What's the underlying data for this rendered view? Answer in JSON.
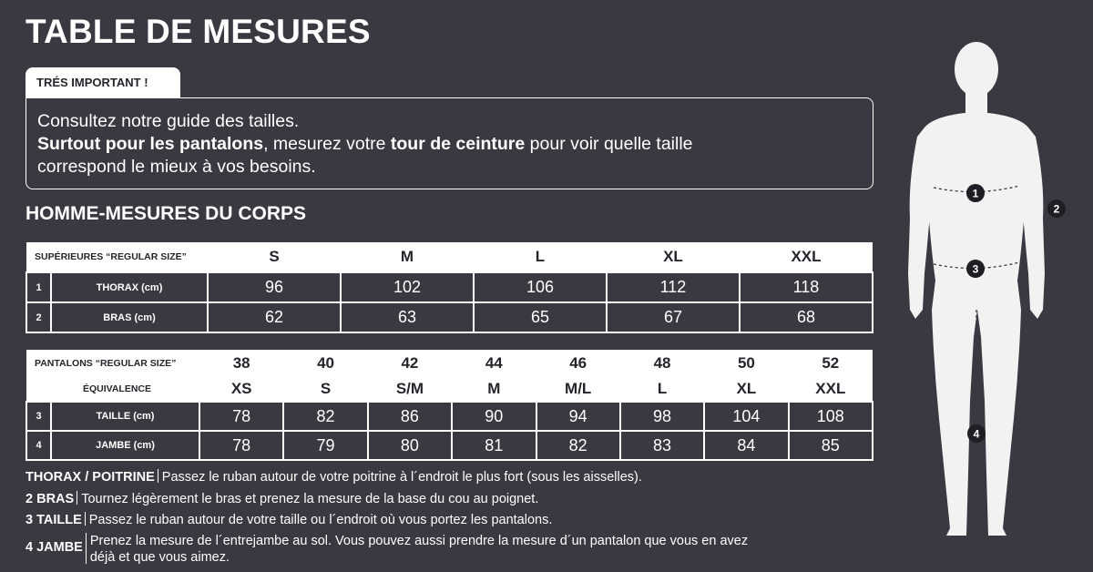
{
  "title": "TABLE DE MESURES",
  "important_label": "TRÉS IMPORTANT !",
  "notice": {
    "line1": "Consultez notre guide des tailles.",
    "line2_bold1": "Surtout pour les pantalons",
    "line2_mid": ", mesurez votre ",
    "line2_bold2": "tour de ceinture",
    "line2_end": " pour voir quelle taille",
    "line3": "correspond le mieux à vos besoins."
  },
  "subtitle": "HOMME-MESURES DU CORPS",
  "tops": {
    "header_label": "SUPÉRIEURES “REGULAR SIZE”",
    "sizes": [
      "S",
      "M",
      "L",
      "XL",
      "XXL"
    ],
    "rows": [
      {
        "num": "1",
        "label": "THORAX  (cm)",
        "values": [
          "96",
          "102",
          "106",
          "112",
          "118"
        ]
      },
      {
        "num": "2",
        "label": "BRAS  (cm)",
        "values": [
          "62",
          "63",
          "65",
          "67",
          "68"
        ]
      }
    ]
  },
  "pants": {
    "header_label": "PANTALONS “REGULAR SIZE”",
    "sizes": [
      "38",
      "40",
      "42",
      "44",
      "46",
      "48",
      "50",
      "52"
    ],
    "equiv_label": "ÉQUIVALENCE",
    "equiv": [
      "XS",
      "S",
      "S/M",
      "M",
      "M/L",
      "L",
      "XL",
      "XXL"
    ],
    "rows": [
      {
        "num": "3",
        "label": "TAILLE  (cm)",
        "values": [
          "78",
          "82",
          "86",
          "90",
          "94",
          "98",
          "104",
          "108"
        ]
      },
      {
        "num": "4",
        "label": "JAMBE (cm)",
        "values": [
          "78",
          "79",
          "80",
          "81",
          "82",
          "83",
          "84",
          "85"
        ]
      }
    ]
  },
  "legend": [
    {
      "key": "THORAX / POITRINE",
      "text": "Passez le ruban autour de votre poitrine à l´endroit le plus fort (sous les aisselles)."
    },
    {
      "key": "2 BRAS",
      "text": "Tournez légèrement le bras et prenez la mesure de la base du cou au poignet."
    },
    {
      "key": "3 TAILLE",
      "text": "Passez le ruban autour de votre taille ou l´endroit où vous portez les pantalons."
    },
    {
      "key": "4 JAMBE",
      "text1": "Prenez la mesure de l´entrejambe au sol. Vous pouvez aussi prendre la mesure d´un pantalon que vous en avez",
      "text2": "déjà et que vous aimez."
    }
  ],
  "figure_markers": [
    "1",
    "2",
    "3",
    "4"
  ],
  "colors": {
    "background": "#3a3942",
    "table_head": "#ffffff",
    "text": "#ffffff",
    "dark_text": "#26252c"
  }
}
